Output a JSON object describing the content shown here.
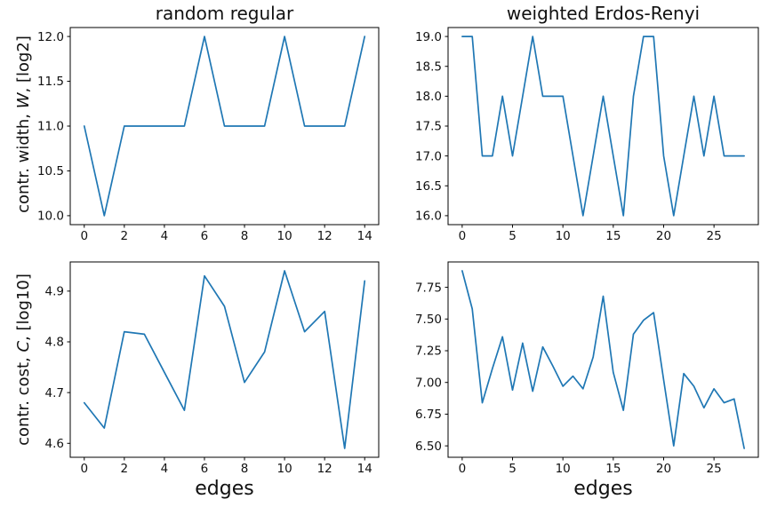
{
  "figure": {
    "background": "#ffffff",
    "line_color": "#1f77b4",
    "axis_color": "#000000"
  },
  "chart_data": [
    {
      "type": "line",
      "title": "random regular",
      "ylabel": {
        "prefix": "contr. width, ",
        "math": "W",
        "suffix": ", [log2]"
      },
      "xlabel": "",
      "legend": "none",
      "grid": false,
      "x": [
        0,
        1,
        2,
        3,
        4,
        5,
        6,
        7,
        8,
        9,
        10,
        11,
        12,
        13,
        14
      ],
      "values": [
        11,
        10,
        11,
        11,
        11,
        11,
        12,
        11,
        11,
        11,
        12,
        11,
        11,
        11,
        12
      ],
      "xlim": [
        -0.7,
        14.7
      ],
      "ylim": [
        9.9,
        12.1
      ],
      "xticks": [
        0,
        2,
        4,
        6,
        8,
        10,
        12,
        14
      ],
      "xtick_labels": [
        "0",
        "2",
        "4",
        "6",
        "8",
        "10",
        "12",
        "14"
      ],
      "yticks": [
        10.0,
        10.5,
        11.0,
        11.5,
        12.0
      ],
      "ytick_labels": [
        "10.0",
        "10.5",
        "11.0",
        "11.5",
        "12.0"
      ]
    },
    {
      "type": "line",
      "title": "weighted Erdos-Renyi",
      "xlabel": "",
      "legend": "none",
      "grid": false,
      "x": [
        0,
        1,
        2,
        3,
        4,
        5,
        6,
        7,
        8,
        9,
        10,
        11,
        12,
        13,
        14,
        15,
        16,
        17,
        18,
        19,
        20,
        21,
        22,
        23,
        24,
        25,
        26,
        27,
        28
      ],
      "values": [
        19,
        19,
        17,
        17,
        18,
        17,
        18,
        19,
        18,
        18,
        18,
        17,
        16,
        17,
        18,
        17,
        16,
        18,
        19,
        19,
        17,
        16,
        17,
        18,
        17,
        18,
        17,
        17,
        17
      ],
      "xlim": [
        -1.4,
        29.4
      ],
      "ylim": [
        15.85,
        19.15
      ],
      "xticks": [
        0,
        5,
        10,
        15,
        20,
        25
      ],
      "xtick_labels": [
        "0",
        "5",
        "10",
        "15",
        "20",
        "25"
      ],
      "yticks": [
        16.0,
        16.5,
        17.0,
        17.5,
        18.0,
        18.5,
        19.0
      ],
      "ytick_labels": [
        "16.0",
        "16.5",
        "17.0",
        "17.5",
        "18.0",
        "18.5",
        "19.0"
      ]
    },
    {
      "type": "line",
      "title": "",
      "ylabel": {
        "prefix": "contr. cost, ",
        "math": "C",
        "suffix": ", [log10]"
      },
      "xlabel": "edges",
      "legend": "none",
      "grid": false,
      "x": [
        0,
        1,
        2,
        3,
        4,
        5,
        6,
        7,
        8,
        9,
        10,
        11,
        12,
        13,
        14
      ],
      "values": [
        4.68,
        4.63,
        4.82,
        4.815,
        4.74,
        4.665,
        4.93,
        4.87,
        4.72,
        4.78,
        4.94,
        4.82,
        4.86,
        4.59,
        4.92
      ],
      "xlim": [
        -0.7,
        14.7
      ],
      "ylim": [
        4.5725,
        4.9575
      ],
      "xticks": [
        0,
        2,
        4,
        6,
        8,
        10,
        12,
        14
      ],
      "xtick_labels": [
        "0",
        "2",
        "4",
        "6",
        "8",
        "10",
        "12",
        "14"
      ],
      "yticks": [
        4.6,
        4.7,
        4.8,
        4.9
      ],
      "ytick_labels": [
        "4.6",
        "4.7",
        "4.8",
        "4.9"
      ]
    },
    {
      "type": "line",
      "title": "",
      "xlabel": "edges",
      "legend": "none",
      "grid": false,
      "x": [
        0,
        1,
        2,
        3,
        4,
        5,
        6,
        7,
        8,
        9,
        10,
        11,
        12,
        13,
        14,
        15,
        16,
        17,
        18,
        19,
        20,
        21,
        22,
        23,
        24,
        25,
        26,
        27,
        28
      ],
      "values": [
        7.88,
        7.58,
        6.84,
        7.11,
        7.36,
        6.94,
        7.31,
        6.93,
        7.28,
        7.13,
        6.97,
        7.05,
        6.95,
        7.2,
        7.68,
        7.08,
        6.78,
        7.38,
        7.49,
        7.55,
        7.02,
        6.5,
        7.07,
        6.97,
        6.8,
        6.95,
        6.84,
        6.87,
        6.48
      ],
      "xlim": [
        -1.4,
        29.4
      ],
      "ylim": [
        6.41,
        7.95
      ],
      "xticks": [
        0,
        5,
        10,
        15,
        20,
        25
      ],
      "xtick_labels": [
        "0",
        "5",
        "10",
        "15",
        "20",
        "25"
      ],
      "yticks": [
        6.5,
        6.75,
        7.0,
        7.25,
        7.5,
        7.75
      ],
      "ytick_labels": [
        "6.50",
        "6.75",
        "7.00",
        "7.25",
        "7.50",
        "7.75"
      ]
    }
  ]
}
